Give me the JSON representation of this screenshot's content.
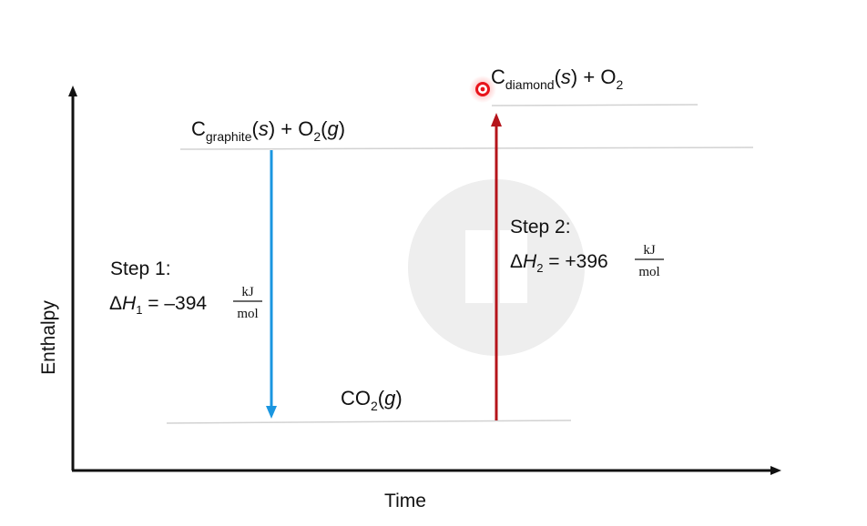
{
  "axes": {
    "y_label": "Enthalpy",
    "x_label": "Time"
  },
  "levels": {
    "graphite": {
      "c": "C",
      "c_sub": "graphite",
      "phase_open": "(",
      "phase": "s",
      "phase_close": ")",
      "plus_o": " + O",
      "o_sub": "2",
      "g_open": "(",
      "g_phase": "g",
      "g_close": ")"
    },
    "diamond": {
      "c": "C",
      "c_sub": "diamond",
      "phase_open": "(",
      "phase": "s",
      "phase_close": ")",
      "plus_o": " + O",
      "o_sub": "2"
    },
    "co2": {
      "co": "CO",
      "sub": "2",
      "g_open": "(",
      "g_phase": "g",
      "g_close": ")"
    }
  },
  "step1": {
    "title": "Step 1:",
    "delta": "Δ",
    "h": "H",
    "h_sub": "1",
    "equals_value": " = –394",
    "unit_num": "kJ",
    "unit_den": "mol"
  },
  "step2": {
    "title": "Step 2:",
    "delta": "Δ",
    "h": "H",
    "h_sub": "2",
    "equals_value": " = +396",
    "unit_num": "kJ",
    "unit_den": "mol"
  },
  "colors": {
    "step1_arrow": "#1a96e0",
    "step2_arrow": "#b5141b",
    "level_line": "#d2d2d2",
    "axis": "#111111",
    "pointer": "#e8141b",
    "watermark": "#eeeeee"
  },
  "icons": {
    "watermark": "pause-icon",
    "pointer": "laser-pointer-icon"
  }
}
